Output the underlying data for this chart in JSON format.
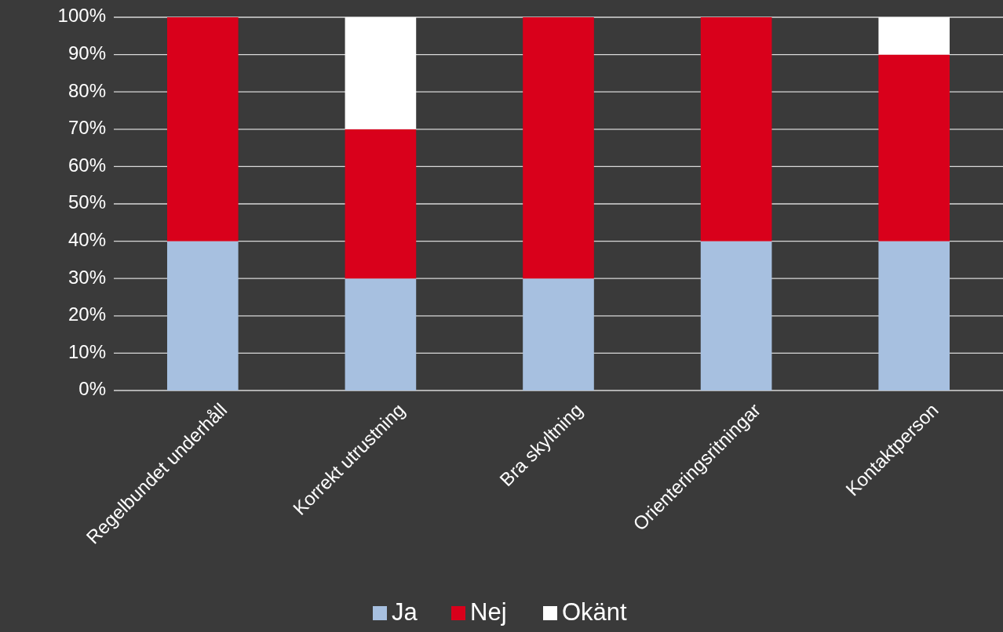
{
  "chart_data": {
    "type": "bar",
    "stacked": true,
    "categories": [
      "Regelbundet underhåll",
      "Korrekt utrustning",
      "Bra skyltning",
      "Orienteringsritningar",
      "Kontaktperson"
    ],
    "series": [
      {
        "name": "Ja",
        "color": "#a7c0e0",
        "values": [
          40,
          30,
          30,
          40,
          40
        ]
      },
      {
        "name": "Nej",
        "color": "#d9001b",
        "values": [
          60,
          40,
          70,
          60,
          50
        ]
      },
      {
        "name": "Okänt",
        "color": "#ffffff",
        "values": [
          0,
          30,
          0,
          0,
          10
        ]
      }
    ],
    "ylim": [
      0,
      100
    ],
    "yticks": [
      {
        "value": 0,
        "label": "0%"
      },
      {
        "value": 10,
        "label": "10%"
      },
      {
        "value": 20,
        "label": "20%"
      },
      {
        "value": 30,
        "label": "30%"
      },
      {
        "value": 40,
        "label": "40%"
      },
      {
        "value": 50,
        "label": "50%"
      },
      {
        "value": 60,
        "label": "60%"
      },
      {
        "value": 70,
        "label": "70%"
      },
      {
        "value": 80,
        "label": "80%"
      },
      {
        "value": 90,
        "label": "90%"
      },
      {
        "value": 100,
        "label": "100%"
      }
    ],
    "grid": "y",
    "legend": "bottom"
  }
}
